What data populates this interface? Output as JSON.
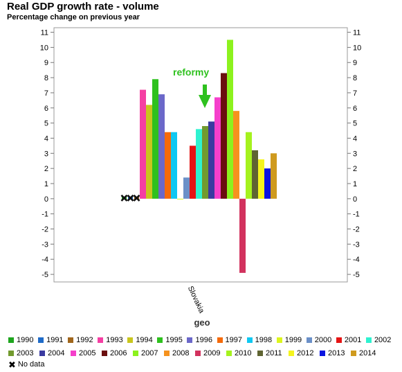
{
  "chart_data": {
    "type": "bar",
    "title": "Real GDP growth rate - volume",
    "subtitle": "Percentage change on previous year",
    "xlabel": "geo",
    "ylabel": "",
    "categories": [
      "Slovakia"
    ],
    "ylim": [
      -5.5,
      11.3
    ],
    "y_ticks": [
      -5,
      -4,
      -3,
      -2,
      -1,
      0,
      1,
      2,
      3,
      4,
      5,
      6,
      7,
      8,
      9,
      10,
      11
    ],
    "grid": false,
    "legend_position": "bottom",
    "series": [
      {
        "name": "1990",
        "color": "#1ea51e",
        "values": [
          null
        ]
      },
      {
        "name": "1991",
        "color": "#1f6bc8",
        "values": [
          null
        ]
      },
      {
        "name": "1992",
        "color": "#a0661c",
        "values": [
          null
        ]
      },
      {
        "name": "1993",
        "color": "#f53fa3",
        "values": [
          7.2
        ]
      },
      {
        "name": "1994",
        "color": "#c9c61e",
        "values": [
          6.2
        ]
      },
      {
        "name": "1995",
        "color": "#2ec11e",
        "values": [
          7.9
        ]
      },
      {
        "name": "1996",
        "color": "#6b68c9",
        "values": [
          6.9
        ]
      },
      {
        "name": "1997",
        "color": "#f56a0a",
        "values": [
          4.4
        ]
      },
      {
        "name": "1998",
        "color": "#0fc8f2",
        "values": [
          4.4
        ]
      },
      {
        "name": "1999",
        "color": "#ddf51e",
        "values": [
          0.0
        ]
      },
      {
        "name": "2000",
        "color": "#6b90c8",
        "values": [
          1.4
        ]
      },
      {
        "name": "2001",
        "color": "#e51414",
        "values": [
          3.5
        ]
      },
      {
        "name": "2002",
        "color": "#2ef2d0",
        "values": [
          4.6
        ]
      },
      {
        "name": "2003",
        "color": "#729a2e",
        "values": [
          4.8
        ]
      },
      {
        "name": "2004",
        "color": "#3a3aa0",
        "values": [
          5.1
        ]
      },
      {
        "name": "2005",
        "color": "#f53fcb",
        "values": [
          6.7
        ]
      },
      {
        "name": "2006",
        "color": "#6a0f0f",
        "values": [
          8.3
        ]
      },
      {
        "name": "2007",
        "color": "#8cf21e",
        "values": [
          10.5
        ]
      },
      {
        "name": "2008",
        "color": "#f5921e",
        "values": [
          5.8
        ]
      },
      {
        "name": "2009",
        "color": "#d2325e",
        "values": [
          -4.9
        ]
      },
      {
        "name": "2010",
        "color": "#a5f21e",
        "values": [
          4.4
        ]
      },
      {
        "name": "2011",
        "color": "#5f6432",
        "values": [
          3.2
        ]
      },
      {
        "name": "2012",
        "color": "#f5f51e",
        "values": [
          2.6
        ]
      },
      {
        "name": "2013",
        "color": "#0a14e0",
        "values": [
          2.0
        ]
      },
      {
        "name": "2014",
        "color": "#cf9a1e",
        "values": [
          3.0
        ]
      }
    ],
    "no_data_series": [
      "1990",
      "1991",
      "1992"
    ],
    "annotations": [
      {
        "text": "reformy",
        "color": "#2ec11e",
        "arrow_color": "#2ec11e",
        "points_to_series": "2002"
      }
    ]
  },
  "legend": {
    "no_data_label": "No data",
    "no_data_symbol": "✖"
  }
}
